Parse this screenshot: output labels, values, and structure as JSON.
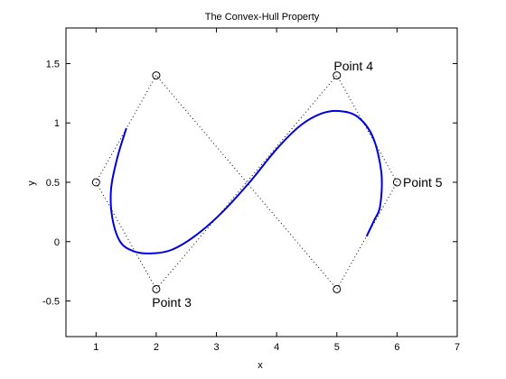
{
  "chart_data": {
    "type": "line",
    "title": "The Convex-Hull Property",
    "xlabel": "x",
    "ylabel": "y",
    "xlim": [
      0.5,
      7
    ],
    "ylim": [
      -0.8,
      1.8
    ],
    "xticks": [
      1,
      2,
      3,
      4,
      5,
      6,
      7
    ],
    "yticks": [
      -0.5,
      0,
      0.5,
      1,
      1.5
    ],
    "ytick_labels": [
      "-0.5",
      "0",
      "0.5",
      "1",
      "1.5"
    ],
    "grid": false,
    "control_points": [
      {
        "x": 2,
        "y": 1.4
      },
      {
        "x": 1,
        "y": 0.5
      },
      {
        "x": 2,
        "y": -0.4
      },
      {
        "x": 5,
        "y": 1.4
      },
      {
        "x": 6,
        "y": 0.5
      },
      {
        "x": 5,
        "y": -0.4
      }
    ],
    "hull_polygon": [
      {
        "x": 2,
        "y": 1.4
      },
      {
        "x": 1,
        "y": 0.5
      },
      {
        "x": 2,
        "y": -0.4
      },
      {
        "x": 5,
        "y": 1.4
      },
      {
        "x": 6,
        "y": 0.5
      },
      {
        "x": 5,
        "y": -0.4
      }
    ],
    "curve": {
      "color": "#0000e0",
      "points": [
        {
          "x": 1.5,
          "y": 0.95
        },
        {
          "x": 1.36,
          "y": 0.72
        },
        {
          "x": 1.25,
          "y": 0.45
        },
        {
          "x": 1.27,
          "y": 0.2
        },
        {
          "x": 1.4,
          "y": 0.0
        },
        {
          "x": 1.62,
          "y": -0.08
        },
        {
          "x": 1.9,
          "y": -0.1
        },
        {
          "x": 2.25,
          "y": -0.07
        },
        {
          "x": 2.65,
          "y": 0.05
        },
        {
          "x": 3.1,
          "y": 0.25
        },
        {
          "x": 3.55,
          "y": 0.5
        },
        {
          "x": 4.0,
          "y": 0.78
        },
        {
          "x": 4.4,
          "y": 0.98
        },
        {
          "x": 4.75,
          "y": 1.08
        },
        {
          "x": 5.05,
          "y": 1.1
        },
        {
          "x": 5.35,
          "y": 1.05
        },
        {
          "x": 5.6,
          "y": 0.88
        },
        {
          "x": 5.74,
          "y": 0.58
        },
        {
          "x": 5.72,
          "y": 0.3
        },
        {
          "x": 5.62,
          "y": 0.18
        },
        {
          "x": 5.5,
          "y": 0.05
        }
      ]
    },
    "annotations": [
      {
        "text": "Point 3",
        "x": 1.93,
        "y": -0.51
      },
      {
        "text": "Point 4",
        "x": 4.95,
        "y": 1.48
      },
      {
        "text": "Point 5",
        "x": 6.1,
        "y": 0.5
      }
    ]
  }
}
